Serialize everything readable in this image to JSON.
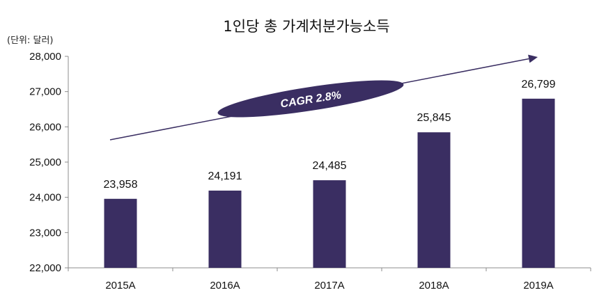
{
  "chart_data": {
    "type": "bar",
    "title": "1인당 총 가계처분가능소득",
    "unit_label": "(단위: 달러)",
    "categories": [
      "2015A",
      "2016A",
      "2017A",
      "2018A",
      "2019A"
    ],
    "values": [
      23958,
      24191,
      24485,
      25845,
      26799
    ],
    "value_labels": [
      "23,958",
      "24,191",
      "24,485",
      "25,845",
      "26,799"
    ],
    "ylim": [
      22000,
      28000
    ],
    "yticks": [
      22000,
      23000,
      24000,
      25000,
      26000,
      27000,
      28000
    ],
    "ytick_labels": [
      "22,000",
      "23,000",
      "24,000",
      "25,000",
      "26,000",
      "27,000",
      "28,000"
    ],
    "annotation": "CAGR 2.8%",
    "grid": false,
    "legend": "none",
    "bar_color": "#3a2e62"
  }
}
